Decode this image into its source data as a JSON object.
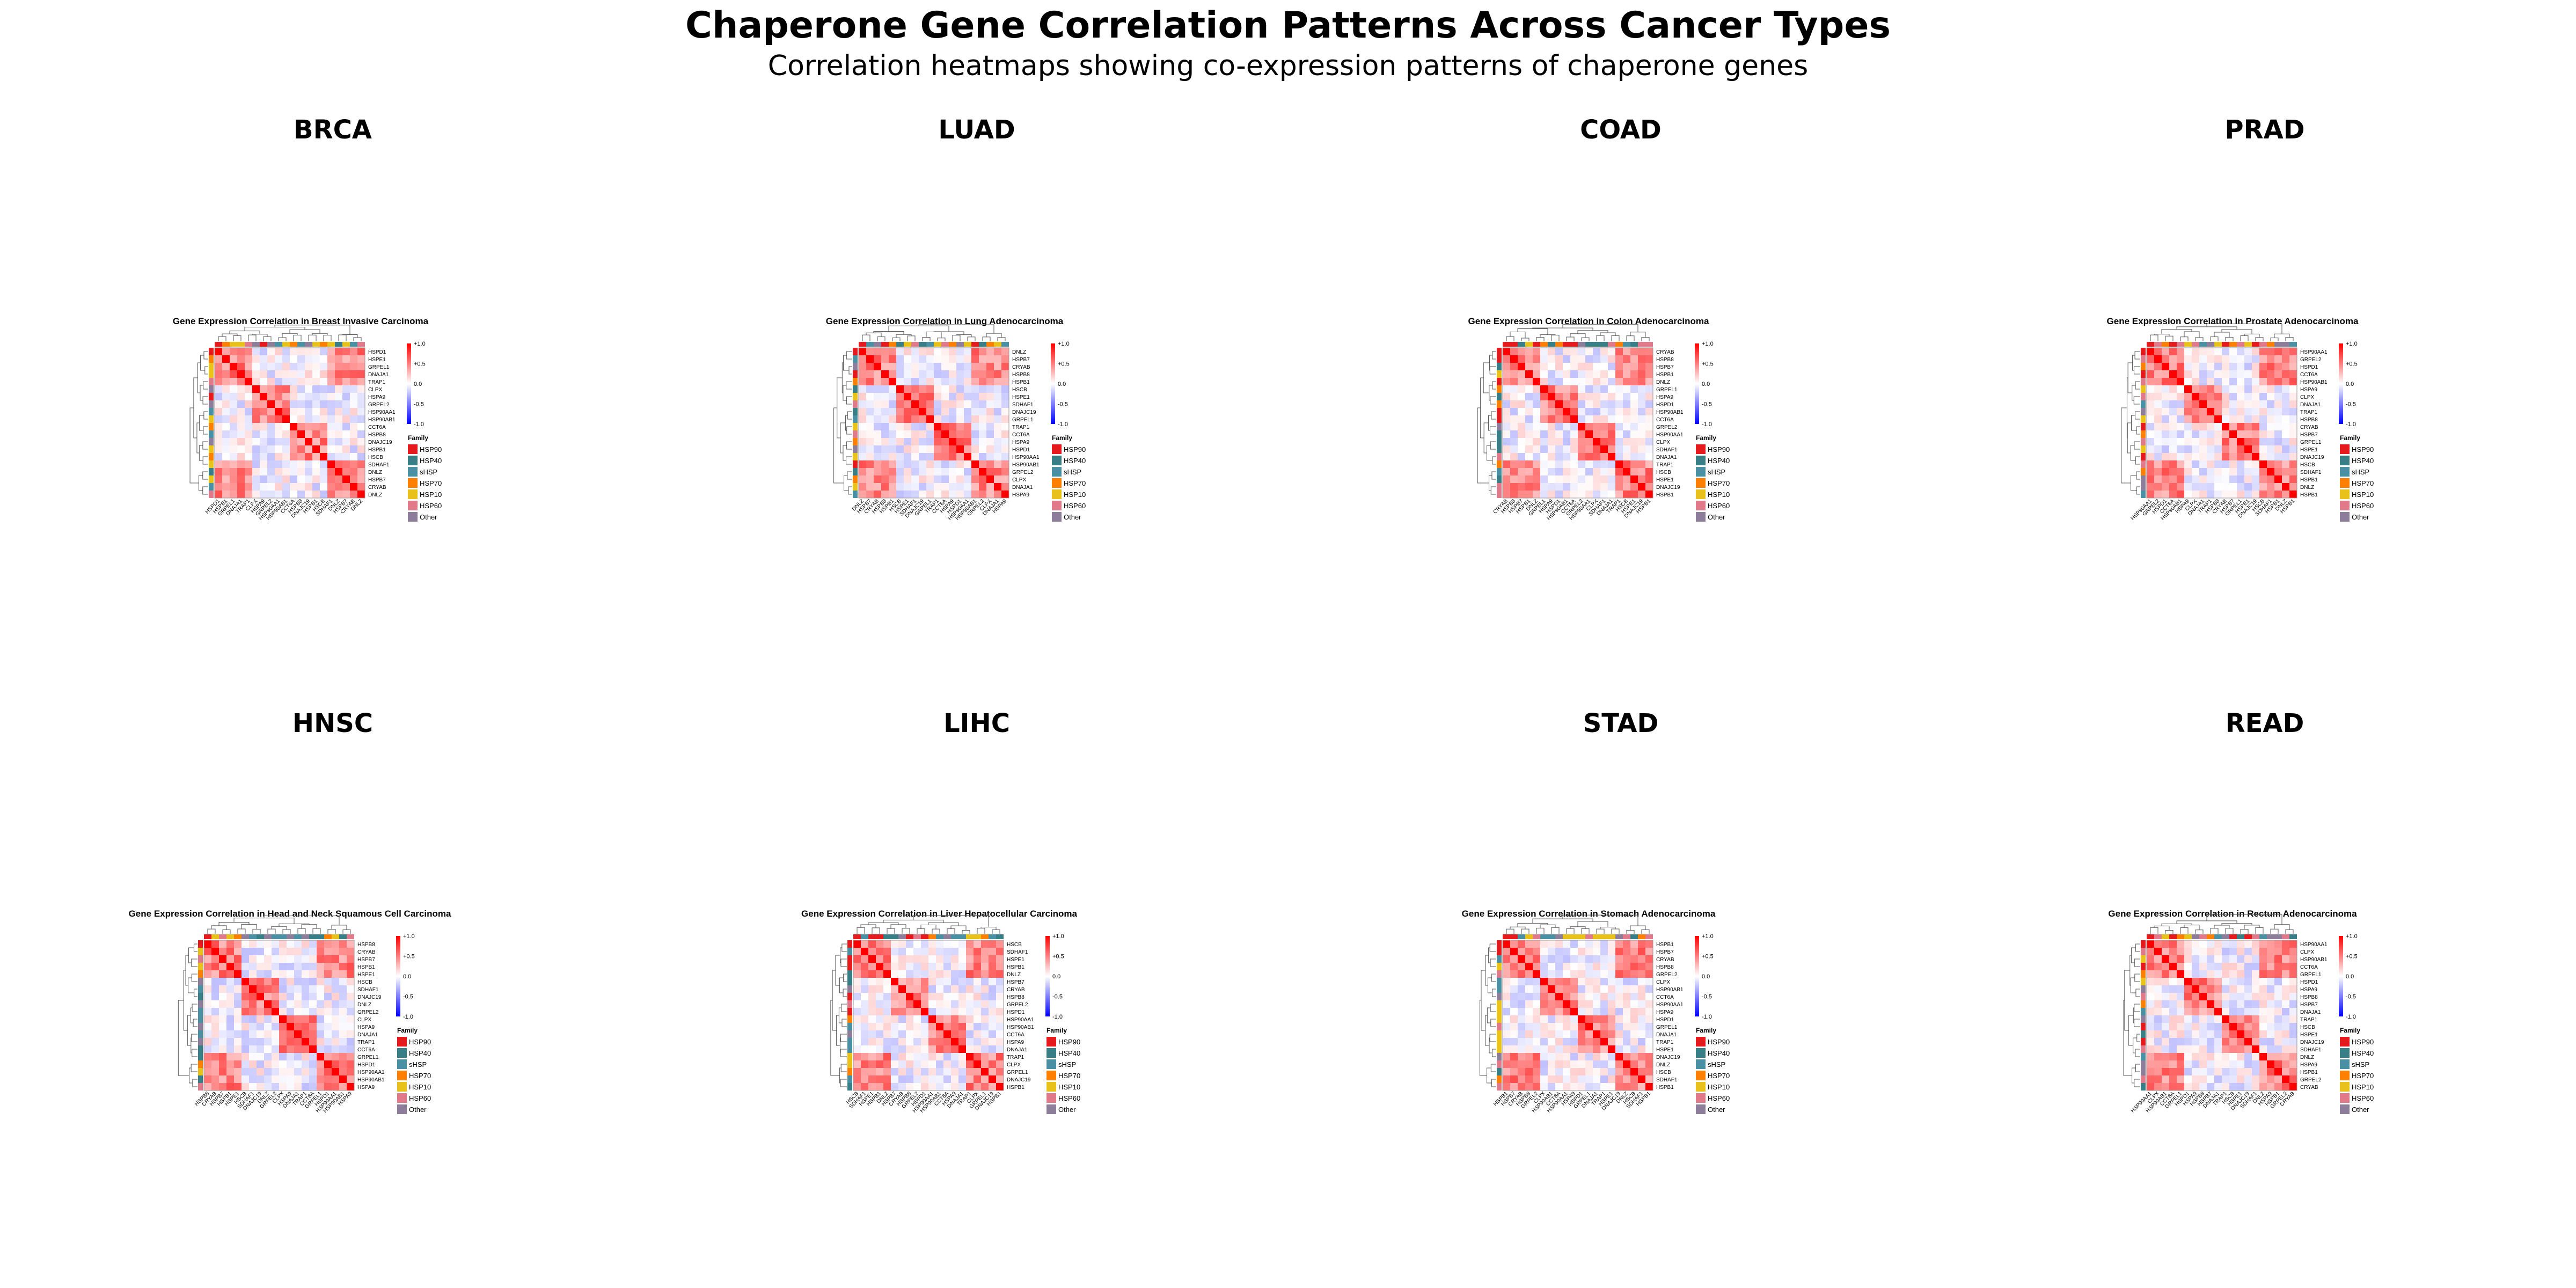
{
  "title": "Chaperone Gene Correlation Patterns Across Cancer Types",
  "subtitle": "Correlation heatmaps showing co-expression patterns of chaperone genes",
  "colors": {
    "positive": "#ff0000",
    "zero": "#ffffff",
    "negative": "#0000ff",
    "families": {
      "HSP90": "#e41a1c",
      "HSP40": "#377e86",
      "sHSP": "#4a90a4",
      "HSP70": "#ff7f00",
      "HSP10": "#e8c21a",
      "HSP60": "#e07a8a",
      "Other": "#8c7d9a"
    }
  },
  "chart_data": [
    {
      "type": "heatmap",
      "panel": "BRCA",
      "title": "Gene Expression Correlation in Breast Invasive Carcinoma",
      "genes": [
        "HSPD1",
        "HSPE1",
        "GRPEL1",
        "DNAJA1",
        "TRAP1",
        "CLPX",
        "HSPA9",
        "GRPEL2",
        "HSP90AA1",
        "HSP90AB1",
        "CCT6A",
        "HSPB8",
        "DNAJC19",
        "HSPB1",
        "HSCB",
        "SDHAF1",
        "DNLZ",
        "HSPB7",
        "CRYAB",
        "DNLZ"
      ],
      "colorbar": {
        "min": -1.0,
        "max": 1.0,
        "ticks": [
          "+1.0",
          "+0.5",
          "0.0",
          "-0.5",
          "-1.0"
        ]
      },
      "legend": {
        "title": "Family",
        "entries": [
          "HSP90",
          "HSP40",
          "sHSP",
          "HSP70",
          "HSP10",
          "HSP60",
          "Other"
        ]
      }
    },
    {
      "type": "heatmap",
      "panel": "LUAD",
      "title": "Gene Expression Correlation in Lung Adenocarcinoma",
      "genes": [
        "DNLZ",
        "HSPB7",
        "CRYAB",
        "HSPB8",
        "HSPB1",
        "HSCB",
        "HSPE1",
        "SDHAF1",
        "DNAJC19",
        "GRPEL1",
        "TRAP1",
        "CCT6A",
        "HSPA9",
        "HSPD1",
        "HSP90AA1",
        "HSP90AB1",
        "GRPEL2",
        "CLPX",
        "DNAJA1",
        "HSPA9"
      ],
      "colorbar": {
        "min": -1.0,
        "max": 1.0,
        "ticks": [
          "+1.0",
          "+0.5",
          "0.0",
          "-0.5",
          "-1.0"
        ]
      },
      "legend": {
        "title": "Family",
        "entries": [
          "HSP90",
          "HSP40",
          "sHSP",
          "HSP70",
          "HSP10",
          "HSP60",
          "Other"
        ]
      }
    },
    {
      "type": "heatmap",
      "panel": "COAD",
      "title": "Gene Expression Correlation in Colon Adenocarcinoma",
      "genes": [
        "CRYAB",
        "HSPB8",
        "HSPB7",
        "HSPB1",
        "DNLZ",
        "GRPEL1",
        "HSPA9",
        "HSPD1",
        "HSP90AB1",
        "CCT6A",
        "GRPEL2",
        "HSP90AA1",
        "CLPX",
        "SDHAF1",
        "DNAJA1",
        "TRAP1",
        "HSCB",
        "HSPE1",
        "DNAJC19",
        "HSPB1"
      ],
      "colorbar": {
        "min": -1.0,
        "max": 1.0,
        "ticks": [
          "+1.0",
          "+0.5",
          "0.0",
          "-0.5",
          "-1.0"
        ]
      },
      "legend": {
        "title": "Family",
        "entries": [
          "HSP90",
          "HSP40",
          "sHSP",
          "HSP70",
          "HSP10",
          "HSP60",
          "Other"
        ]
      }
    },
    {
      "type": "heatmap",
      "panel": "PRAD",
      "title": "Gene Expression Correlation in Prostate Adenocarcinoma",
      "genes": [
        "HSP90AA1",
        "GRPEL2",
        "HSPD1",
        "CCT6A",
        "HSP90AB1",
        "HSPA9",
        "CLPX",
        "DNAJA1",
        "TRAP1",
        "HSPB8",
        "CRYAB",
        "HSPB7",
        "GRPEL1",
        "HSPE1",
        "DNAJC19",
        "HSCB",
        "SDHAF1",
        "HSPB1",
        "DNLZ",
        "HSPB1"
      ],
      "colorbar": {
        "min": -1.0,
        "max": 1.0,
        "ticks": [
          "+1.0",
          "+0.5",
          "0.0",
          "-0.5",
          "-1.0"
        ]
      },
      "legend": {
        "title": "Family",
        "entries": [
          "HSP90",
          "HSP40",
          "sHSP",
          "HSP70",
          "HSP10",
          "HSP60",
          "Other"
        ]
      }
    },
    {
      "type": "heatmap",
      "panel": "HNSC",
      "title": "Gene Expression Correlation in Head and Neck Squamous Cell Carcinoma",
      "genes": [
        "HSPB8",
        "CRYAB",
        "HSPB7",
        "HSPB1",
        "HSPE1",
        "HSCB",
        "SDHAF1",
        "DNAJC19",
        "DNLZ",
        "GRPEL2",
        "CLPX",
        "HSPA9",
        "DNAJA1",
        "TRAP1",
        "CCT6A",
        "GRPEL1",
        "HSPD1",
        "HSP90AA1",
        "HSP90AB1",
        "HSPA9"
      ],
      "colorbar": {
        "min": -1.0,
        "max": 1.0,
        "ticks": [
          "+1.0",
          "+0.5",
          "0.0",
          "-0.5",
          "-1.0"
        ]
      },
      "legend": {
        "title": "Family",
        "entries": [
          "HSP90",
          "HSP40",
          "sHSP",
          "HSP70",
          "HSP10",
          "HSP60",
          "Other"
        ]
      }
    },
    {
      "type": "heatmap",
      "panel": "LIHC",
      "title": "Gene Expression Correlation in Liver Hepatocellular Carcinoma",
      "genes": [
        "HSCB",
        "SDHAF1",
        "HSPE1",
        "HSPB1",
        "DNLZ",
        "HSPB7",
        "CRYAB",
        "HSPB8",
        "GRPEL2",
        "HSPD1",
        "HSP90AA1",
        "HSP90AB1",
        "CCT6A",
        "HSPA9",
        "DNAJA1",
        "TRAP1",
        "CLPX",
        "GRPEL1",
        "DNAJC19",
        "HSPB1"
      ],
      "colorbar": {
        "min": -1.0,
        "max": 1.0,
        "ticks": [
          "+1.0",
          "+0.5",
          "0.0",
          "-0.5",
          "-1.0"
        ]
      },
      "legend": {
        "title": "Family",
        "entries": [
          "HSP90",
          "HSP40",
          "sHSP",
          "HSP70",
          "HSP10",
          "HSP60",
          "Other"
        ]
      }
    },
    {
      "type": "heatmap",
      "panel": "STAD",
      "title": "Gene Expression Correlation in Stomach Adenocarcinoma",
      "genes": [
        "HSPB1",
        "HSPB7",
        "CRYAB",
        "HSPB8",
        "GRPEL2",
        "CLPX",
        "HSP90AB1",
        "CCT6A",
        "HSP90AA1",
        "HSPA9",
        "HSPD1",
        "GRPEL1",
        "DNAJA1",
        "TRAP1",
        "HSPE1",
        "DNAJC19",
        "DNLZ",
        "HSCB",
        "SDHAF1",
        "HSPB1"
      ],
      "colorbar": {
        "min": -1.0,
        "max": 1.0,
        "ticks": [
          "+1.0",
          "+0.5",
          "0.0",
          "-0.5",
          "-1.0"
        ]
      },
      "legend": {
        "title": "Family",
        "entries": [
          "HSP90",
          "HSP40",
          "sHSP",
          "HSP70",
          "HSP10",
          "HSP60",
          "Other"
        ]
      }
    },
    {
      "type": "heatmap",
      "panel": "READ",
      "title": "Gene Expression Correlation in Rectum Adenocarcinoma",
      "genes": [
        "HSP90AA1",
        "CLPX",
        "HSP90AB1",
        "CCT6A",
        "GRPEL1",
        "HSPD1",
        "HSPA9",
        "HSPB8",
        "HSPB7",
        "DNAJA1",
        "TRAP1",
        "HSCB",
        "HSPE1",
        "DNAJC19",
        "SDHAF1",
        "DNLZ",
        "HSPA9",
        "HSPB1",
        "GRPEL2",
        "CRYAB"
      ],
      "colorbar": {
        "min": -1.0,
        "max": 1.0,
        "ticks": [
          "+1.0",
          "+0.5",
          "0.0",
          "-0.5",
          "-1.0"
        ]
      },
      "legend": {
        "title": "Family",
        "entries": [
          "HSP90",
          "HSP40",
          "sHSP",
          "HSP70",
          "HSP10",
          "HSP60",
          "Other"
        ]
      }
    }
  ]
}
